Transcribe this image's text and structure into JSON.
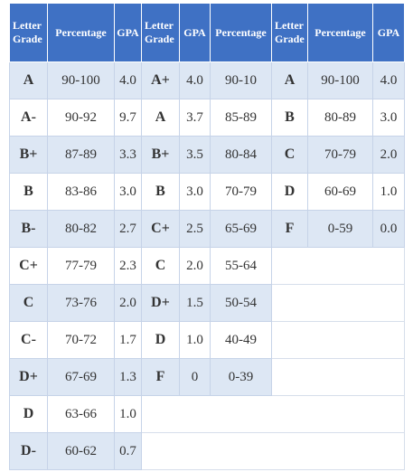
{
  "table": {
    "headers": [
      "Letter Grade",
      "Percentage",
      "GPA",
      "Letter Grade",
      "GPA",
      "Percentage",
      "Letter Grade",
      "Percentage",
      "GPA"
    ],
    "rows": [
      [
        "A",
        "90-100",
        "4.0",
        "A+",
        "4.0",
        "90-10",
        "A",
        "90-100",
        "4.0"
      ],
      [
        "A-",
        "90-92",
        "9.7",
        "A",
        "3.7",
        "85-89",
        "B",
        "80-89",
        "3.0"
      ],
      [
        "B+",
        "87-89",
        "3.3",
        "B+",
        "3.5",
        "80-84",
        "C",
        "70-79",
        "2.0"
      ],
      [
        "B",
        "83-86",
        "3.0",
        "B",
        "3.0",
        "70-79",
        "D",
        "60-69",
        "1.0"
      ],
      [
        "B-",
        "80-82",
        "2.7",
        "C+",
        "2.5",
        "65-69",
        "F",
        "0-59",
        "0.0"
      ],
      [
        "C+",
        "77-79",
        "2.3",
        "C",
        "2.0",
        "55-64"
      ],
      [
        "C",
        "73-76",
        "2.0",
        "D+",
        "1.5",
        "50-54"
      ],
      [
        "C-",
        "70-72",
        "1.7",
        "D",
        "1.0",
        "40-49"
      ],
      [
        "D+",
        "67-69",
        "1.3",
        "F",
        "0",
        "0-39"
      ],
      [
        "D",
        "63-66",
        "1.0"
      ],
      [
        "D-",
        "60-62",
        "0.7"
      ]
    ]
  }
}
